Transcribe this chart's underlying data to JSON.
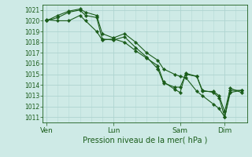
{
  "title": "Pression niveau de la mer( hPa )",
  "background_color": "#ceeae6",
  "grid_color": "#aed4d0",
  "line_color": "#1a5c1a",
  "marker_color": "#1a5c1a",
  "ylim": [
    1010.5,
    1021.5
  ],
  "yticks": [
    1011,
    1012,
    1013,
    1014,
    1015,
    1016,
    1017,
    1018,
    1019,
    1020,
    1021
  ],
  "xtick_labels": [
    "Ven",
    "Lun",
    "Sam",
    "Dim"
  ],
  "xtick_positions": [
    0,
    36,
    72,
    96
  ],
  "xlim": [
    -2,
    108
  ],
  "series1_x": [
    0,
    6,
    12,
    18,
    21,
    27,
    30,
    36,
    42,
    48,
    54,
    60,
    63,
    69,
    72,
    75,
    81,
    84,
    90,
    93,
    96,
    99,
    105
  ],
  "series1_y": [
    1020.0,
    1020.3,
    1020.8,
    1021.0,
    1020.5,
    1020.3,
    1018.3,
    1018.2,
    1018.5,
    1017.5,
    1016.6,
    1015.5,
    1014.2,
    1013.8,
    1013.8,
    1015.0,
    1014.8,
    1013.5,
    1013.3,
    1012.8,
    1011.0,
    1013.3,
    1013.5
  ],
  "series2_x": [
    0,
    6,
    12,
    18,
    21,
    27,
    30,
    36,
    42,
    48,
    54,
    60,
    63,
    69,
    72,
    75,
    81,
    84,
    90,
    93,
    96,
    99,
    105
  ],
  "series2_y": [
    1020.0,
    1020.5,
    1020.9,
    1021.1,
    1020.8,
    1020.5,
    1018.8,
    1018.4,
    1018.8,
    1018.0,
    1017.0,
    1016.3,
    1015.5,
    1015.0,
    1014.8,
    1014.7,
    1013.4,
    1013.0,
    1012.2,
    1011.8,
    1011.0,
    1013.5,
    1013.5
  ],
  "series3_x": [
    0,
    6,
    12,
    18,
    21,
    27,
    30,
    36,
    42,
    48,
    54,
    60,
    63,
    69,
    72,
    75,
    81,
    84,
    90,
    93,
    96,
    99,
    105
  ],
  "series3_y": [
    1020.1,
    1020.0,
    1020.0,
    1020.5,
    1020.0,
    1019.0,
    1018.2,
    1018.3,
    1018.0,
    1017.2,
    1016.5,
    1015.8,
    1014.3,
    1013.6,
    1013.3,
    1015.1,
    1014.8,
    1013.4,
    1013.4,
    1013.0,
    1011.5,
    1013.7,
    1013.3
  ],
  "minor_xtick_positions": [
    6,
    12,
    18,
    24,
    30,
    42,
    48,
    54,
    60,
    66,
    78,
    84,
    90,
    102
  ],
  "figwidth": 3.2,
  "figheight": 2.0,
  "dpi": 100
}
